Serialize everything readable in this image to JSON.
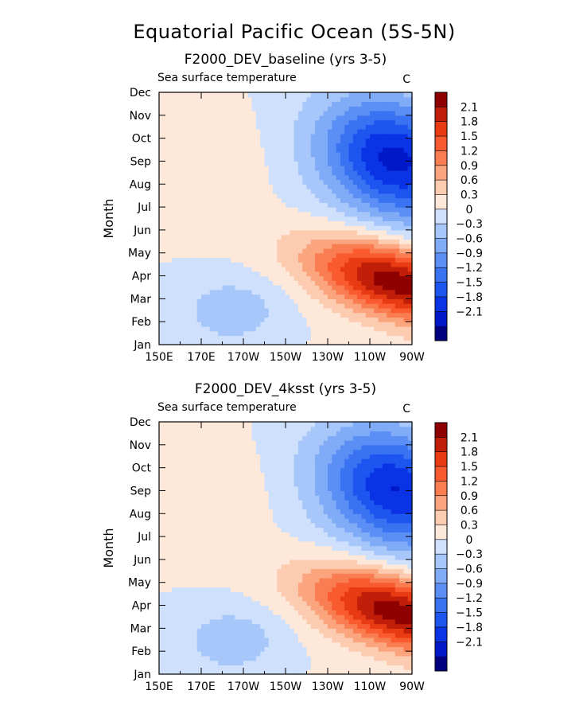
{
  "title": "Equatorial Pacific Ocean (5S-5N)",
  "colors": {
    "scale": [
      "#00007f",
      "#0019c8",
      "#0b33e6",
      "#1d55f0",
      "#3973f2",
      "#5b8ff5",
      "#80abf7",
      "#a7c7fa",
      "#cee0fc",
      "#fde8da",
      "#fccbb0",
      "#fba57f",
      "#fa7d52",
      "#f95a2f",
      "#e83b14",
      "#c01e08",
      "#8f0000"
    ]
  },
  "chart_data": [
    {
      "type": "heatmap",
      "title": "F2000_DEV_baseline (yrs 3-5)",
      "variable": "Sea surface temperature",
      "units": "C",
      "xlabel": "",
      "ylabel": "Month",
      "x_ticks": [
        "150E",
        "170E",
        "170W",
        "150W",
        "130W",
        "110W",
        "90W"
      ],
      "y_ticks": [
        "Jan",
        "Feb",
        "Mar",
        "Apr",
        "May",
        "Jun",
        "Jul",
        "Aug",
        "Sep",
        "Oct",
        "Nov",
        "Dec"
      ],
      "levels": [
        "-2.1",
        "-1.8",
        "-1.5",
        "-1.2",
        "-0.9",
        "-0.6",
        "-0.3",
        "0",
        "0.3",
        "0.6",
        "0.9",
        "1.2",
        "1.5",
        "1.8",
        "2.1"
      ],
      "xlim": [
        150,
        270
      ],
      "ylim": [
        1,
        12
      ],
      "grid": false,
      "legend": "right",
      "peak_warm": {
        "lon": 262,
        "month": 3.6,
        "value": 2.3
      },
      "peak_cold": {
        "lon": 262,
        "month": 9.0,
        "value": -2.2
      }
    },
    {
      "type": "heatmap",
      "title": "F2000_DEV_4ksst (yrs 3-5)",
      "variable": "Sea surface temperature",
      "units": "C",
      "xlabel": "",
      "ylabel": "Month",
      "x_ticks": [
        "150E",
        "170E",
        "170W",
        "150W",
        "130W",
        "110W",
        "90W"
      ],
      "y_ticks": [
        "Jan",
        "Feb",
        "Mar",
        "Apr",
        "May",
        "Jun",
        "Jul",
        "Aug",
        "Sep",
        "Oct",
        "Nov",
        "Dec"
      ],
      "levels": [
        "-2.1",
        "-1.8",
        "-1.5",
        "-1.2",
        "-0.9",
        "-0.6",
        "-0.3",
        "0",
        "0.3",
        "0.6",
        "0.9",
        "1.2",
        "1.5",
        "1.8",
        "2.1"
      ],
      "xlim": [
        150,
        270
      ],
      "ylim": [
        1,
        12
      ],
      "grid": false,
      "legend": "right",
      "peak_warm": {
        "lon": 262,
        "month": 3.6,
        "value": 2.3
      },
      "peak_cold": {
        "lon": 262,
        "month": 9.0,
        "value": -2.1
      }
    }
  ]
}
